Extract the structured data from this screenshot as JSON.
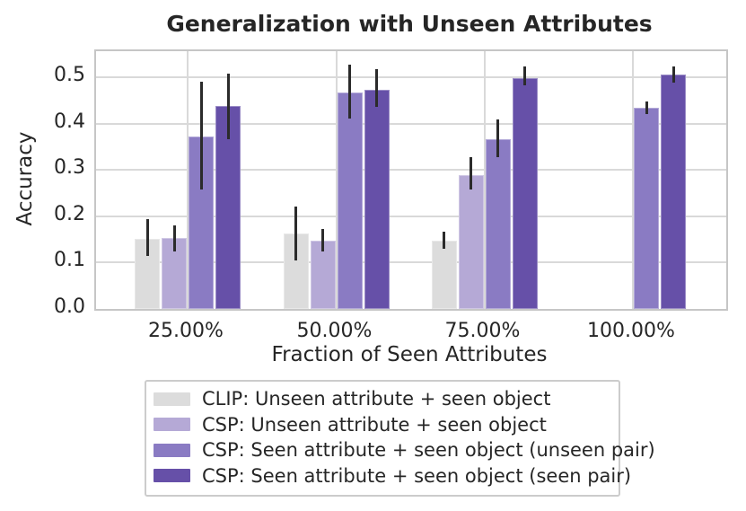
{
  "chart_data": {
    "type": "bar",
    "title": "Generalization with Unseen Attributes",
    "xlabel": "Fraction of Seen Attributes",
    "ylabel": "Accuracy",
    "categories": [
      "25.00%",
      "50.00%",
      "75.00%",
      "100.00%"
    ],
    "ylim": [
      0,
      0.556
    ],
    "yticks": [
      0.0,
      0.1,
      0.2,
      0.3,
      0.4,
      0.5
    ],
    "ytick_labels": [
      "0.0",
      "0.1",
      "0.2",
      "0.3",
      "0.4",
      "0.5"
    ],
    "grid": true,
    "legend_position": "bottom",
    "error_bar_color": "#2b2b2b",
    "series": [
      {
        "name": "CLIP: Unseen attribute + seen object",
        "color": "#dcdcdc",
        "values": [
          0.152,
          0.163,
          0.147,
          null
        ],
        "err_low": [
          0.114,
          0.104,
          0.13,
          null
        ],
        "err_high": [
          0.193,
          0.22,
          0.166,
          null
        ]
      },
      {
        "name": "CSP: Unseen attribute + seen object",
        "color": "#b5a9d6",
        "values": [
          0.154,
          0.147,
          0.289,
          null
        ],
        "err_low": [
          0.124,
          0.123,
          0.257,
          null
        ],
        "err_high": [
          0.181,
          0.172,
          0.327,
          null
        ]
      },
      {
        "name": "CSP: Seen attribute + seen object (unseen pair)",
        "color": "#8a7bc3",
        "values": [
          0.372,
          0.466,
          0.366,
          0.433
        ],
        "err_low": [
          0.257,
          0.41,
          0.328,
          0.42
        ],
        "err_high": [
          0.49,
          0.527,
          0.408,
          0.448
        ]
      },
      {
        "name": "CSP: Seen attribute + seen object (seen pair)",
        "color": "#6650a8",
        "values": [
          0.437,
          0.473,
          0.498,
          0.505
        ],
        "err_low": [
          0.366,
          0.436,
          0.483,
          0.489
        ],
        "err_high": [
          0.508,
          0.517,
          0.524,
          0.523
        ]
      }
    ]
  }
}
